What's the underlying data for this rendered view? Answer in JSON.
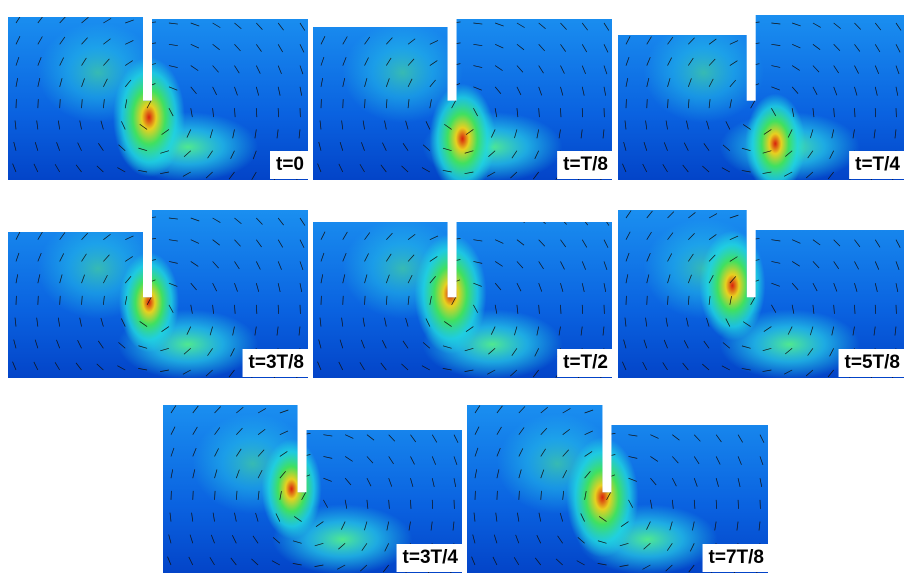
{
  "panels": [
    {
      "label": "t=0"
    },
    {
      "label": "t=T/8"
    },
    {
      "label": "t=T/4"
    },
    {
      "label": "t=3T/8"
    },
    {
      "label": "t=T/2"
    },
    {
      "label": "t=5T/8"
    },
    {
      "label": "t=3T/4"
    },
    {
      "label": "t=7T/8"
    }
  ]
}
